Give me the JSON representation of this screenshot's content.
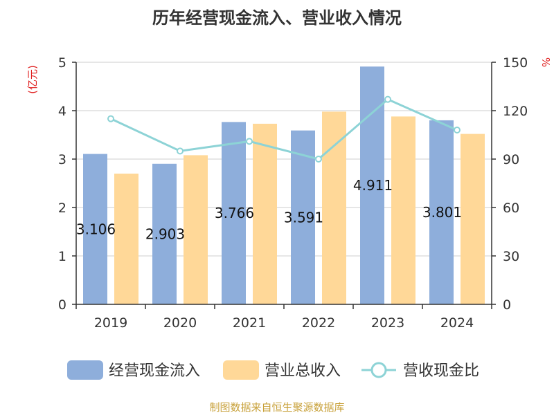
{
  "chart_data": {
    "type": "bar",
    "title": "历年经营现金流入、营业收入情况",
    "categories": [
      "2019",
      "2020",
      "2021",
      "2022",
      "2023",
      "2024"
    ],
    "series": [
      {
        "name": "经营现金流入",
        "type": "bar",
        "axis": "left",
        "color": "#8eaedb",
        "values": [
          3.106,
          2.903,
          3.766,
          3.591,
          4.911,
          3.801
        ]
      },
      {
        "name": "营业总收入",
        "type": "bar",
        "axis": "left",
        "color": "#ffd898",
        "values": [
          2.7,
          3.08,
          3.73,
          3.98,
          3.88,
          3.52
        ]
      },
      {
        "name": "营收现金比",
        "type": "line",
        "axis": "right",
        "color": "#8dd3d6",
        "values": [
          115,
          95,
          101,
          90,
          127,
          108
        ]
      }
    ],
    "data_labels": [
      "3.106",
      "2.903",
      "3.766",
      "3.591",
      "4.911",
      "3.801"
    ],
    "y_left": {
      "unit": "(亿元)",
      "ticks": [
        "0",
        "1",
        "2",
        "3",
        "4",
        "5"
      ],
      "min": 0,
      "max": 5
    },
    "y_right": {
      "unit": "%",
      "ticks": [
        "0",
        "30",
        "60",
        "90",
        "120",
        "150"
      ],
      "min": 0,
      "max": 150
    },
    "grid": true,
    "legend_position": "bottom"
  },
  "source": "制图数据来自恒生聚源数据库"
}
